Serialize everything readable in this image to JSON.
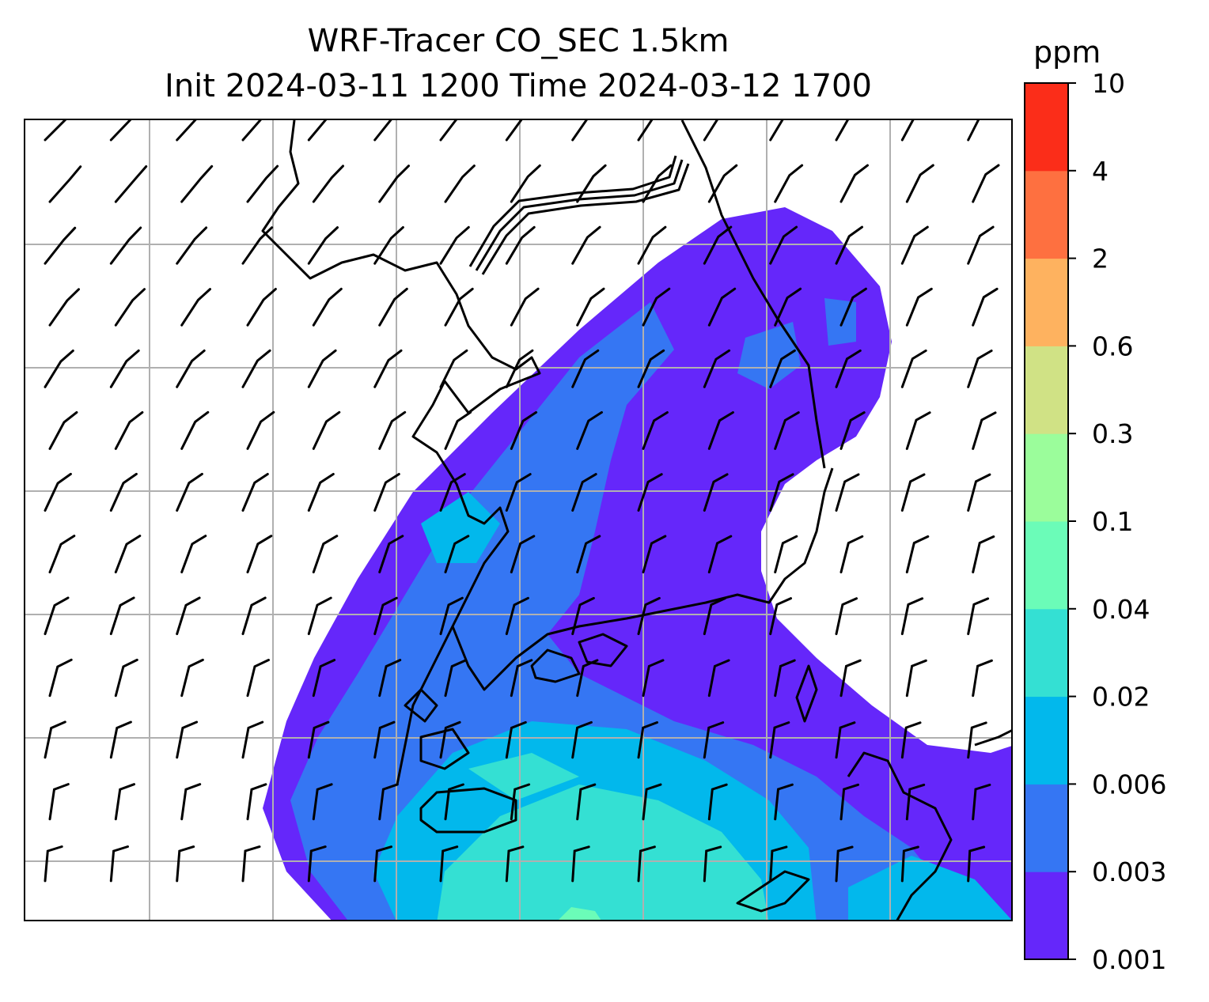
{
  "title": {
    "line1": "WRF-Tracer CO_SEC 1.5km",
    "line2": "Init 2024-03-11 1200 Time 2024-03-12 1700"
  },
  "colorbar": {
    "unit": "ppm",
    "ticks": [
      "0.001",
      "0.003",
      "0.006",
      "0.02",
      "0.04",
      "0.1",
      "0.3",
      "0.6",
      "2",
      "4",
      "10"
    ],
    "colors": [
      "#6527fa",
      "#3576f3",
      "#02b8ec",
      "#34e0d3",
      "#6bfcb8",
      "#9bfd9b",
      "#d0e285",
      "#feb25f",
      "#fe7040",
      "#fb2d19"
    ]
  },
  "map": {
    "gridlines": true,
    "gridline_color": "#b0b0b0",
    "coastline_color": "#000000",
    "wind_barbs": true
  }
}
